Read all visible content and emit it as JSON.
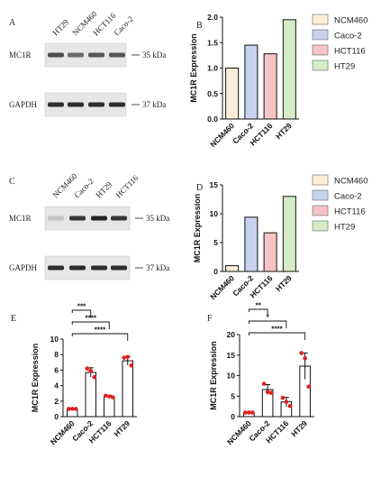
{
  "panels": {
    "A": {
      "letter": "A",
      "lanes": [
        "HT29",
        "NCM460",
        "HCT116",
        "Caco-2"
      ],
      "rows": [
        {
          "label": "MC1R",
          "marker": "35 kDa",
          "intensity": [
            0.75,
            0.6,
            0.7,
            0.7
          ]
        },
        {
          "label": "GAPDH",
          "marker": "37 kDa",
          "intensity": [
            0.9,
            0.9,
            0.9,
            0.9
          ]
        }
      ]
    },
    "C": {
      "letter": "C",
      "lanes": [
        "NCM460",
        "Caco-2",
        "HT29",
        "HCT116"
      ],
      "rows": [
        {
          "label": "MC1R",
          "marker": "35 kDa",
          "intensity": [
            0.15,
            0.85,
            0.95,
            0.85
          ]
        },
        {
          "label": "GAPDH",
          "marker": "37 kDa",
          "intensity": [
            0.9,
            0.9,
            0.9,
            0.9
          ]
        }
      ]
    }
  },
  "chart_data": [
    {
      "panel": "B",
      "type": "bar",
      "categories": [
        "NCM460",
        "Caco-2",
        "HCT116",
        "HT29"
      ],
      "values": [
        1.0,
        1.45,
        1.28,
        1.95
      ],
      "colors": [
        "#fdeeda",
        "#c6d2ee",
        "#f6c4c4",
        "#d6ecc6"
      ],
      "ylabel": "MC1R Expression",
      "ylim": [
        0,
        2.0
      ],
      "yticks": [
        "0.0",
        "0.5",
        "1.0",
        "1.5",
        "2.0"
      ],
      "legend": [
        "NCM460",
        "Caco-2",
        "HCT116",
        "HT29"
      ]
    },
    {
      "panel": "D",
      "type": "bar",
      "categories": [
        "NCM460",
        "Caco-2",
        "HCT116",
        "HT29"
      ],
      "values": [
        1.0,
        9.4,
        6.7,
        13.0
      ],
      "colors": [
        "#fdeeda",
        "#c6d2ee",
        "#f6c4c4",
        "#d6ecc6"
      ],
      "ylabel": "MC1R Expression",
      "ylim": [
        0,
        15
      ],
      "yticks": [
        "0",
        "5",
        "10",
        "15"
      ],
      "legend": [
        "NCM460",
        "Caco-2",
        "HCT116",
        "HT29"
      ]
    },
    {
      "panel": "E",
      "type": "bar",
      "categories": [
        "NCM460",
        "Caco-2",
        "HCT116",
        "HT29"
      ],
      "values": [
        1.0,
        5.7,
        2.6,
        7.2
      ],
      "errors": [
        0.05,
        0.6,
        0.15,
        0.55
      ],
      "points": [
        [
          1.0,
          1.0,
          1.0
        ],
        [
          6.2,
          5.9,
          5.1
        ],
        [
          2.7,
          2.6,
          2.5
        ],
        [
          7.6,
          7.7,
          6.6
        ]
      ],
      "ylabel": "MC1R Expression",
      "ylim": [
        0,
        10
      ],
      "yticks": [
        "0",
        "2",
        "4",
        "6",
        "8",
        "10"
      ],
      "significance": [
        {
          "from": 0,
          "to": 1,
          "label": "***"
        },
        {
          "from": 0,
          "to": 2,
          "label": "****"
        },
        {
          "from": 0,
          "to": 3,
          "label": "****"
        }
      ]
    },
    {
      "panel": "F",
      "type": "bar",
      "categories": [
        "NCM460",
        "Caco-2",
        "HCT116",
        "HT29"
      ],
      "values": [
        1.0,
        6.6,
        3.6,
        12.3
      ],
      "errors": [
        0.05,
        1.2,
        1.1,
        3.2
      ],
      "points": [
        [
          1.0,
          1.0,
          1.0
        ],
        [
          8.0,
          6.0,
          5.8
        ],
        [
          4.6,
          3.6,
          2.6
        ],
        [
          15.5,
          14.2,
          7.3
        ]
      ],
      "ylabel": "MC1R Expression",
      "ylim": [
        0,
        20
      ],
      "yticks": [
        "0",
        "5",
        "10",
        "15",
        "20"
      ],
      "significance": [
        {
          "from": 0,
          "to": 1,
          "label": "**"
        },
        {
          "from": 0,
          "to": 2,
          "label": "*"
        },
        {
          "from": 0,
          "to": 3,
          "label": "****"
        }
      ]
    }
  ]
}
